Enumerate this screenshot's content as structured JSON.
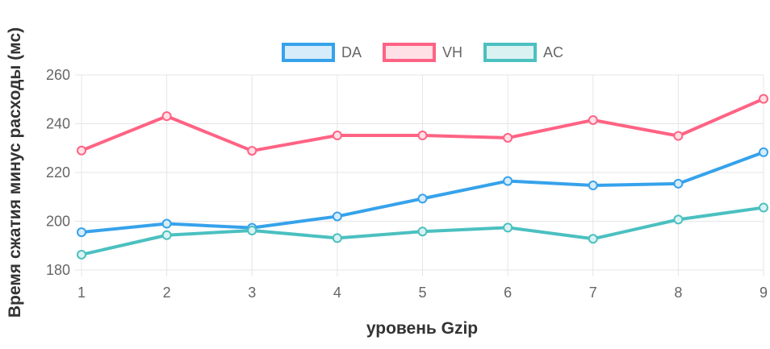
{
  "chart_data": {
    "type": "line",
    "title": "",
    "xlabel": "уровень Gzip",
    "ylabel": "Время сжатия минус расходы (мс)",
    "categories": [
      "1",
      "2",
      "3",
      "4",
      "5",
      "6",
      "7",
      "8",
      "9"
    ],
    "ylim": [
      180,
      260
    ],
    "yticks": [
      "180",
      "200",
      "220",
      "240",
      "260"
    ],
    "grid": true,
    "legend_position": "top",
    "series": [
      {
        "name": "DA",
        "color": "#36a2eb",
        "fill": "#d7ecfb",
        "values": [
          195.5,
          199.0,
          197.3,
          202.0,
          209.3,
          216.5,
          214.7,
          215.4,
          228.3
        ]
      },
      {
        "name": "VH",
        "color": "#ff6384",
        "fill": "#ffe0e6",
        "values": [
          229.0,
          243.1,
          228.9,
          235.2,
          235.2,
          234.2,
          241.5,
          235.0,
          250.2
        ]
      },
      {
        "name": "AC",
        "color": "#4bc0c0",
        "fill": "#dbf2f2",
        "values": [
          186.3,
          194.3,
          196.2,
          193.1,
          195.8,
          197.4,
          192.8,
          200.7,
          205.6
        ]
      }
    ]
  }
}
